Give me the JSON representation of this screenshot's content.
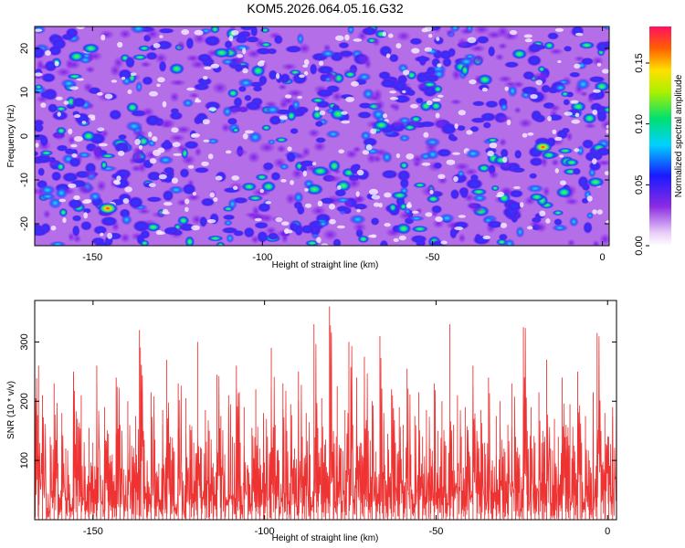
{
  "title": "KOM5.2026.064.05.16.G32",
  "chart_data": [
    {
      "type": "heatmap",
      "name": "spectrogram",
      "xlabel": "Height of straight line (km)",
      "ylabel": "Frequency (Hz)",
      "xlim": [
        -167,
        2
      ],
      "ylim": [
        -25,
        25
      ],
      "xticks": [
        -150,
        -100,
        -50,
        0
      ],
      "xtick_labels": [
        "-150",
        "-100",
        "-50",
        "0"
      ],
      "yticks": [
        20,
        10,
        0,
        -10,
        -20
      ],
      "ytick_labels": [
        "20",
        "10",
        "0",
        "-10",
        "-20"
      ],
      "colorbar": {
        "label": "Normalized spectral amplitude",
        "range": [
          0.0,
          0.18
        ],
        "ticks": [
          0.0,
          0.05,
          0.1,
          0.15
        ],
        "tick_labels": [
          "0.00",
          "0.05",
          "0.10",
          "0.15"
        ]
      },
      "hotspots": [
        {
          "x": -145.5,
          "y": -16.5,
          "v": 0.17
        },
        {
          "x": -17.5,
          "y": -2.5,
          "v": 0.14
        },
        {
          "x": -83.0,
          "y": -8.0,
          "v": 0.11
        },
        {
          "x": -112.0,
          "y": 19.0,
          "v": 0.1
        },
        {
          "x": -150.5,
          "y": 20.0,
          "v": 0.1
        },
        {
          "x": -65.0,
          "y": 2.5,
          "v": 0.1
        },
        {
          "x": -2.0,
          "y": -10.5,
          "v": 0.1
        },
        {
          "x": -97.0,
          "y": 6.0,
          "v": 0.09
        },
        {
          "x": -72.0,
          "y": -19.0,
          "v": 0.09
        },
        {
          "x": -38.0,
          "y": -4.0,
          "v": 0.08
        },
        {
          "x": -157.0,
          "y": 12.0,
          "v": 0.08
        },
        {
          "x": -40.0,
          "y": 17.0,
          "v": 0.08
        }
      ]
    },
    {
      "type": "line",
      "name": "snr",
      "xlabel": "Height of straight line (km)",
      "ylabel": "SNR (10 * v/v)",
      "xlim": [
        -167,
        2.6
      ],
      "ylim": [
        0,
        370
      ],
      "xticks": [
        -150,
        -100,
        -50,
        0
      ],
      "xtick_labels": [
        "-150",
        "-100",
        "-50",
        "0"
      ],
      "yticks": [
        100,
        200,
        300
      ],
      "ytick_labels": [
        "100",
        "200",
        "300"
      ],
      "color": "#ee3333",
      "series": [
        {
          "name": "SNR",
          "values": [
            315,
            260,
            210,
            45,
            140,
            230,
            95,
            180,
            120,
            60,
            250,
            170,
            210,
            90,
            155,
            130,
            260,
            75,
            190,
            145,
            110,
            240,
            160,
            85,
            200,
            125,
            175,
            320,
            150,
            100,
            215,
            135,
            95,
            185,
            270,
            140,
            115,
            230,
            80,
            205,
            160,
            130,
            300,
            120,
            185,
            150,
            95,
            245,
            175,
            110,
            210,
            140,
            260,
            130,
            190,
            85,
            155,
            220,
            120,
            180,
            140,
            290,
            160,
            100,
            230,
            150,
            195,
            120,
            250,
            140,
            180,
            110,
            330,
            155,
            205,
            135,
            360,
            150,
            225,
            120,
            185,
            300,
            160,
            240,
            130,
            275,
            150,
            200,
            115,
            310,
            180,
            145,
            220,
            130,
            190,
            160,
            255,
            110,
            175,
            215,
            140,
            185,
            120,
            230,
            150,
            200,
            125,
            330,
            160,
            210,
            140,
            190,
            115,
            260,
            150,
            185,
            130,
            240,
            100,
            175,
            200,
            120,
            160,
            230,
            140,
            110,
            325,
            150,
            190,
            130,
            215,
            150,
            270,
            120,
            170,
            140,
            240,
            160,
            195,
            125,
            250,
            130,
            175,
            100,
            215,
            315,
            150,
            180,
            140,
            190,
            220
          ]
        }
      ]
    }
  ]
}
